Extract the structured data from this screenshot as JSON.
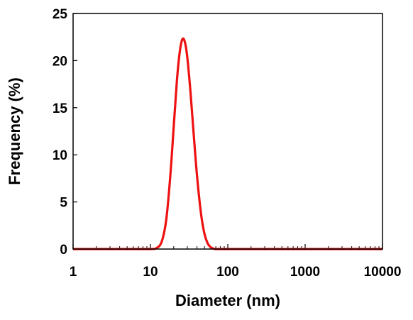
{
  "chart_data": {
    "type": "line",
    "xscale": "log",
    "xlabel": "Diameter (nm)",
    "ylabel": "Frequency (%)",
    "xlim": [
      1,
      10000
    ],
    "ylim": [
      0,
      25
    ],
    "xticks": [
      1,
      10,
      100,
      1000,
      10000
    ],
    "xtick_labels": [
      "1",
      "10",
      "100",
      "1000",
      "10000"
    ],
    "yticks": [
      0,
      5,
      10,
      15,
      20,
      25
    ],
    "ytick_labels": [
      "0",
      "5",
      "10",
      "15",
      "20",
      "25"
    ],
    "grid": false,
    "legend": "none",
    "series": [
      {
        "color": "#ee1111",
        "x": [
          1,
          5,
          10,
          12,
          14,
          16,
          18,
          20,
          22,
          24,
          26,
          28,
          30,
          33,
          36,
          40,
          45,
          50,
          55,
          60,
          65,
          70,
          80,
          100,
          1000,
          10000
        ],
        "y": [
          0,
          0,
          0,
          0.1,
          0.8,
          3.1,
          7.6,
          13.0,
          17.9,
          21.0,
          22.3,
          21.9,
          20.3,
          16.6,
          12.5,
          7.8,
          3.8,
          1.6,
          0.6,
          0.2,
          0.05,
          0,
          0,
          0,
          0,
          0
        ]
      }
    ]
  }
}
